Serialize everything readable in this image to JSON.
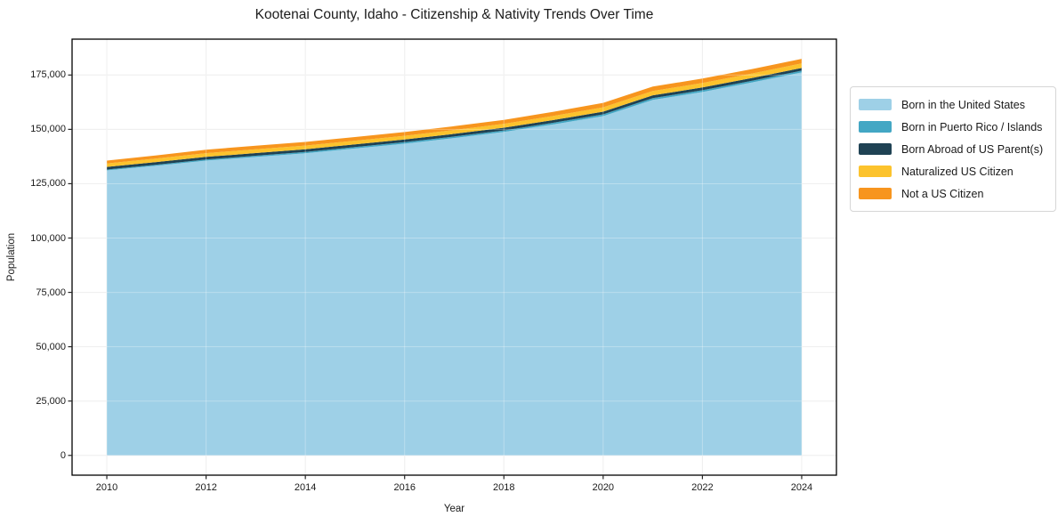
{
  "page": {
    "background": "#ffffff"
  },
  "chart_data": {
    "type": "area",
    "stacked": true,
    "title": "Kootenai County, Idaho - Citizenship & Nativity Trends Over Time",
    "xlabel": "Year",
    "ylabel": "Population",
    "x": [
      2010,
      2011,
      2012,
      2013,
      2014,
      2015,
      2016,
      2017,
      2018,
      2019,
      2020,
      2021,
      2022,
      2023,
      2024
    ],
    "series": [
      {
        "name": "Born in the United States",
        "color": "#9ed0e7",
        "values": [
          131100,
          133300,
          135600,
          137300,
          139000,
          141200,
          143400,
          146000,
          148800,
          152300,
          156100,
          163600,
          167200,
          171600,
          176200
        ]
      },
      {
        "name": "Born in Puerto Rico / Islands",
        "color": "#43a7c4",
        "values": [
          400,
          450,
          500,
          550,
          600,
          650,
          700,
          700,
          700,
          750,
          800,
          800,
          800,
          800,
          800
        ]
      },
      {
        "name": "Born Abroad of US Parent(s)",
        "color": "#1f4254",
        "values": [
          1200,
          1200,
          1250,
          1250,
          1250,
          1250,
          1250,
          1250,
          1250,
          1250,
          1250,
          1250,
          1250,
          1250,
          1250
        ]
      },
      {
        "name": "Naturalized US Citizen",
        "color": "#fcc32d",
        "values": [
          1600,
          1650,
          1700,
          1700,
          1700,
          1700,
          1700,
          1750,
          1800,
          1900,
          2000,
          2000,
          2050,
          2050,
          2100
        ]
      },
      {
        "name": "Not a US Citizen",
        "color": "#f7951e",
        "values": [
          1300,
          1450,
          1600,
          1650,
          1650,
          1650,
          1700,
          1750,
          1800,
          1900,
          2050,
          2050,
          2050,
          2050,
          2100
        ]
      }
    ],
    "x_ticks": [
      2010,
      2012,
      2014,
      2016,
      2018,
      2020,
      2022,
      2024
    ],
    "y_ticks": [
      0,
      25000,
      50000,
      75000,
      100000,
      125000,
      150000,
      175000
    ],
    "y_tick_labels": [
      "0",
      "25,000",
      "50,000",
      "75,000",
      "100,000",
      "125,000",
      "150,000",
      "175,000"
    ],
    "xlim": [
      2009.3,
      2024.7
    ],
    "ylim": [
      -9100,
      191500
    ],
    "grid": true,
    "legend_position": "right",
    "style": {
      "frame_color": "#000000",
      "grid_color": "#e9e9e9",
      "grid_overlay_color": "rgba(255,255,255,0.30)",
      "tick_color": "#262626"
    }
  }
}
